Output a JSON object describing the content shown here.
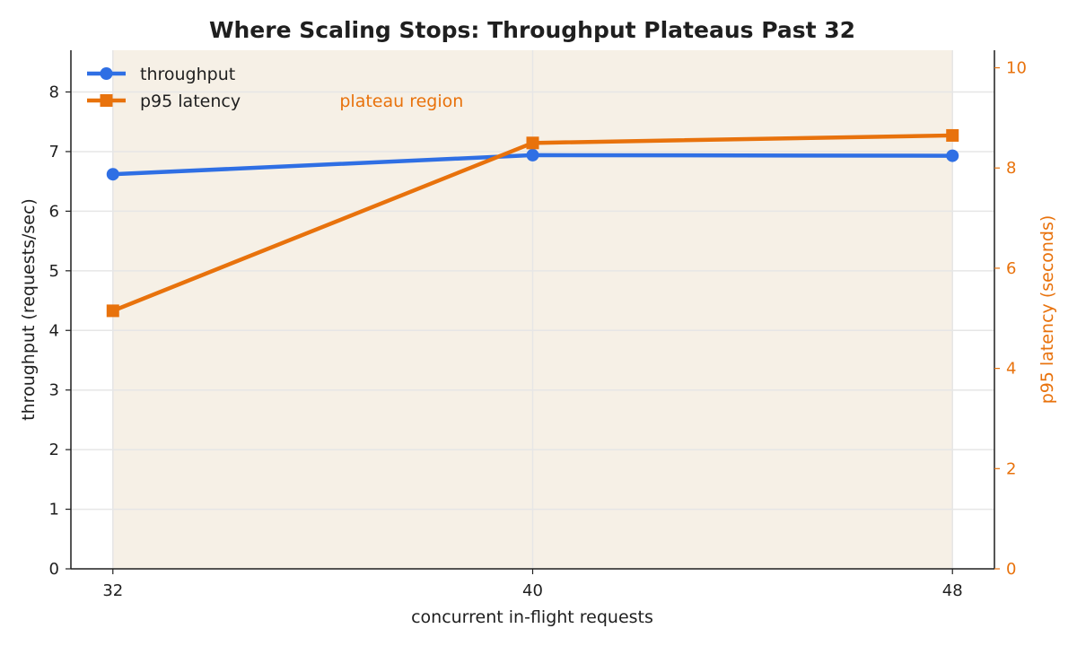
{
  "chart_data": {
    "type": "line",
    "title": "Where Scaling Stops: Throughput Plateaus Past 32",
    "xlabel": "concurrent in-flight requests",
    "ylabel": "throughput (requests/sec)",
    "y2label": "p95 latency (seconds)",
    "x": [
      32,
      40,
      48
    ],
    "xlim": [
      31.2,
      48.8
    ],
    "ylim": [
      0,
      8.7
    ],
    "y2lim": [
      0,
      10.35
    ],
    "xticks": [
      "32",
      "40",
      "48"
    ],
    "yticks": [
      "0",
      "1",
      "2",
      "3",
      "4",
      "5",
      "6",
      "7",
      "8"
    ],
    "y2ticks": [
      "0",
      "2",
      "4",
      "6",
      "8",
      "10"
    ],
    "grid": true,
    "legend_position": "top-left",
    "series": [
      {
        "name": "throughput",
        "axis": "left",
        "color": "#2f6fe4",
        "marker": "circle",
        "values": [
          6.62,
          6.94,
          6.93
        ]
      },
      {
        "name": "p95 latency",
        "axis": "right",
        "color": "#e8720c",
        "marker": "square",
        "values": [
          5.15,
          8.5,
          8.65
        ]
      }
    ],
    "shaded_region": {
      "x_start": 32,
      "x_end": 48,
      "color": "#f6f0e6"
    },
    "annotation": {
      "text": "plateau region",
      "x": 37.5,
      "y": 7.75
    }
  }
}
